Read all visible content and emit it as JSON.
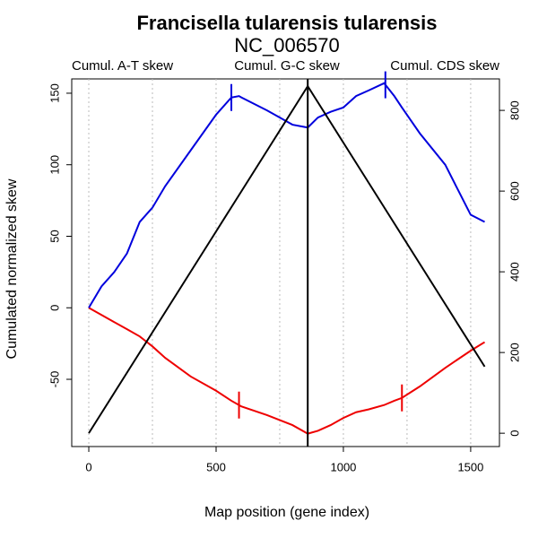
{
  "chart_data": {
    "type": "line",
    "title": "Francisella tularensis tularensis",
    "subtitle": "NC_006570",
    "x_label": "Map position (gene index)",
    "y_label": "Cumulated normalized skew",
    "x": [
      0,
      50,
      100,
      150,
      200,
      250,
      300,
      400,
      500,
      560,
      590,
      600,
      700,
      800,
      860,
      900,
      950,
      1000,
      1050,
      1100,
      1160,
      1200,
      1230,
      1300,
      1400,
      1500,
      1555
    ],
    "series": [
      {
        "name": "Cumul. A-T skew",
        "color": "#ee0000",
        "axis": "y",
        "values": [
          0,
          -5,
          -10,
          -15,
          -20,
          -27,
          -35,
          -48,
          -58,
          -65,
          -68,
          -69,
          -75,
          -82,
          -88,
          -86,
          -82,
          -77,
          -73,
          -71,
          -68,
          -65,
          -63,
          -55,
          -42,
          -30,
          -24
        ],
        "breakpoints": [
          590,
          1230
        ]
      },
      {
        "name": "Cumul. G-C skew",
        "color": "#0000dd",
        "axis": "y",
        "values": [
          0,
          15,
          25,
          38,
          60,
          70,
          85,
          110,
          135,
          147,
          148,
          147,
          138,
          128,
          126,
          133,
          137,
          140,
          148,
          152,
          157,
          148,
          140,
          122,
          100,
          65,
          60
        ],
        "breakpoints": [
          560,
          1165
        ]
      },
      {
        "name": "Cumul. CDS skew",
        "color": "#000000",
        "axis": "y2",
        "values": [
          0,
          50,
          100,
          150,
          200,
          250,
          300,
          400,
          500,
          560,
          590,
          600,
          700,
          800,
          860,
          820,
          770,
          720,
          670,
          620,
          560,
          520,
          490,
          420,
          320,
          220,
          165
        ]
      }
    ],
    "vline": 860,
    "xlim": [
      -67,
      1613
    ],
    "xticks": [
      0,
      500,
      1000,
      1500
    ],
    "xgrid": [
      0,
      250,
      500,
      750,
      1000,
      1250,
      1500
    ],
    "ylim": [
      -97,
      160
    ],
    "yticks": [
      -50,
      0,
      50,
      100,
      150
    ],
    "y2lim": [
      -33,
      878
    ],
    "y2ticks": [
      0,
      200,
      400,
      600,
      800
    ]
  }
}
